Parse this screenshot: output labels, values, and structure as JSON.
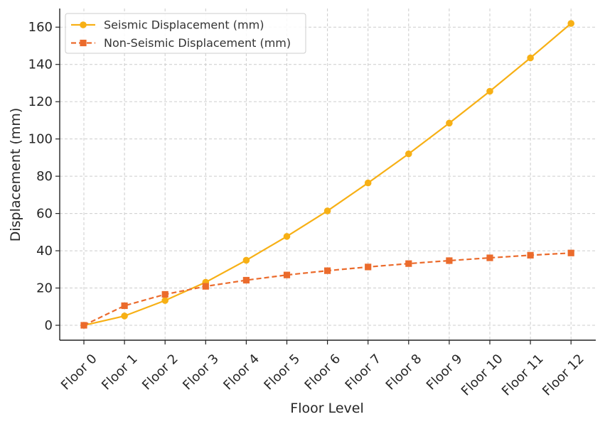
{
  "chart_data": {
    "type": "line",
    "title": "",
    "xlabel": "Floor Level",
    "ylabel": "Displacement (mm)",
    "categories": [
      "Floor 0",
      "Floor 1",
      "Floor 2",
      "Floor 3",
      "Floor 4",
      "Floor 5",
      "Floor 6",
      "Floor 7",
      "Floor 8",
      "Floor 9",
      "Floor 10",
      "Floor 11",
      "Floor 12"
    ],
    "ylim": [
      -8,
      170
    ],
    "yticks": [
      0,
      20,
      40,
      60,
      80,
      100,
      120,
      140,
      160
    ],
    "grid": true,
    "legend_position": "top-left",
    "series": [
      {
        "name": "Seismic Displacement (mm)",
        "color": "#F7B015",
        "line_style": "solid",
        "marker": "circle",
        "values": [
          0,
          5,
          13.3,
          23.1,
          34.9,
          47.7,
          61.4,
          76.4,
          92,
          108.5,
          125.6,
          143.5,
          162
        ]
      },
      {
        "name": "Non-Seismic Displacement (mm)",
        "color": "#EB6B2C",
        "line_style": "dashed",
        "marker": "square",
        "values": [
          0,
          10.5,
          16.6,
          20.9,
          24.2,
          27,
          29.3,
          31.3,
          33.1,
          34.7,
          36.2,
          37.6,
          38.8
        ]
      }
    ]
  }
}
